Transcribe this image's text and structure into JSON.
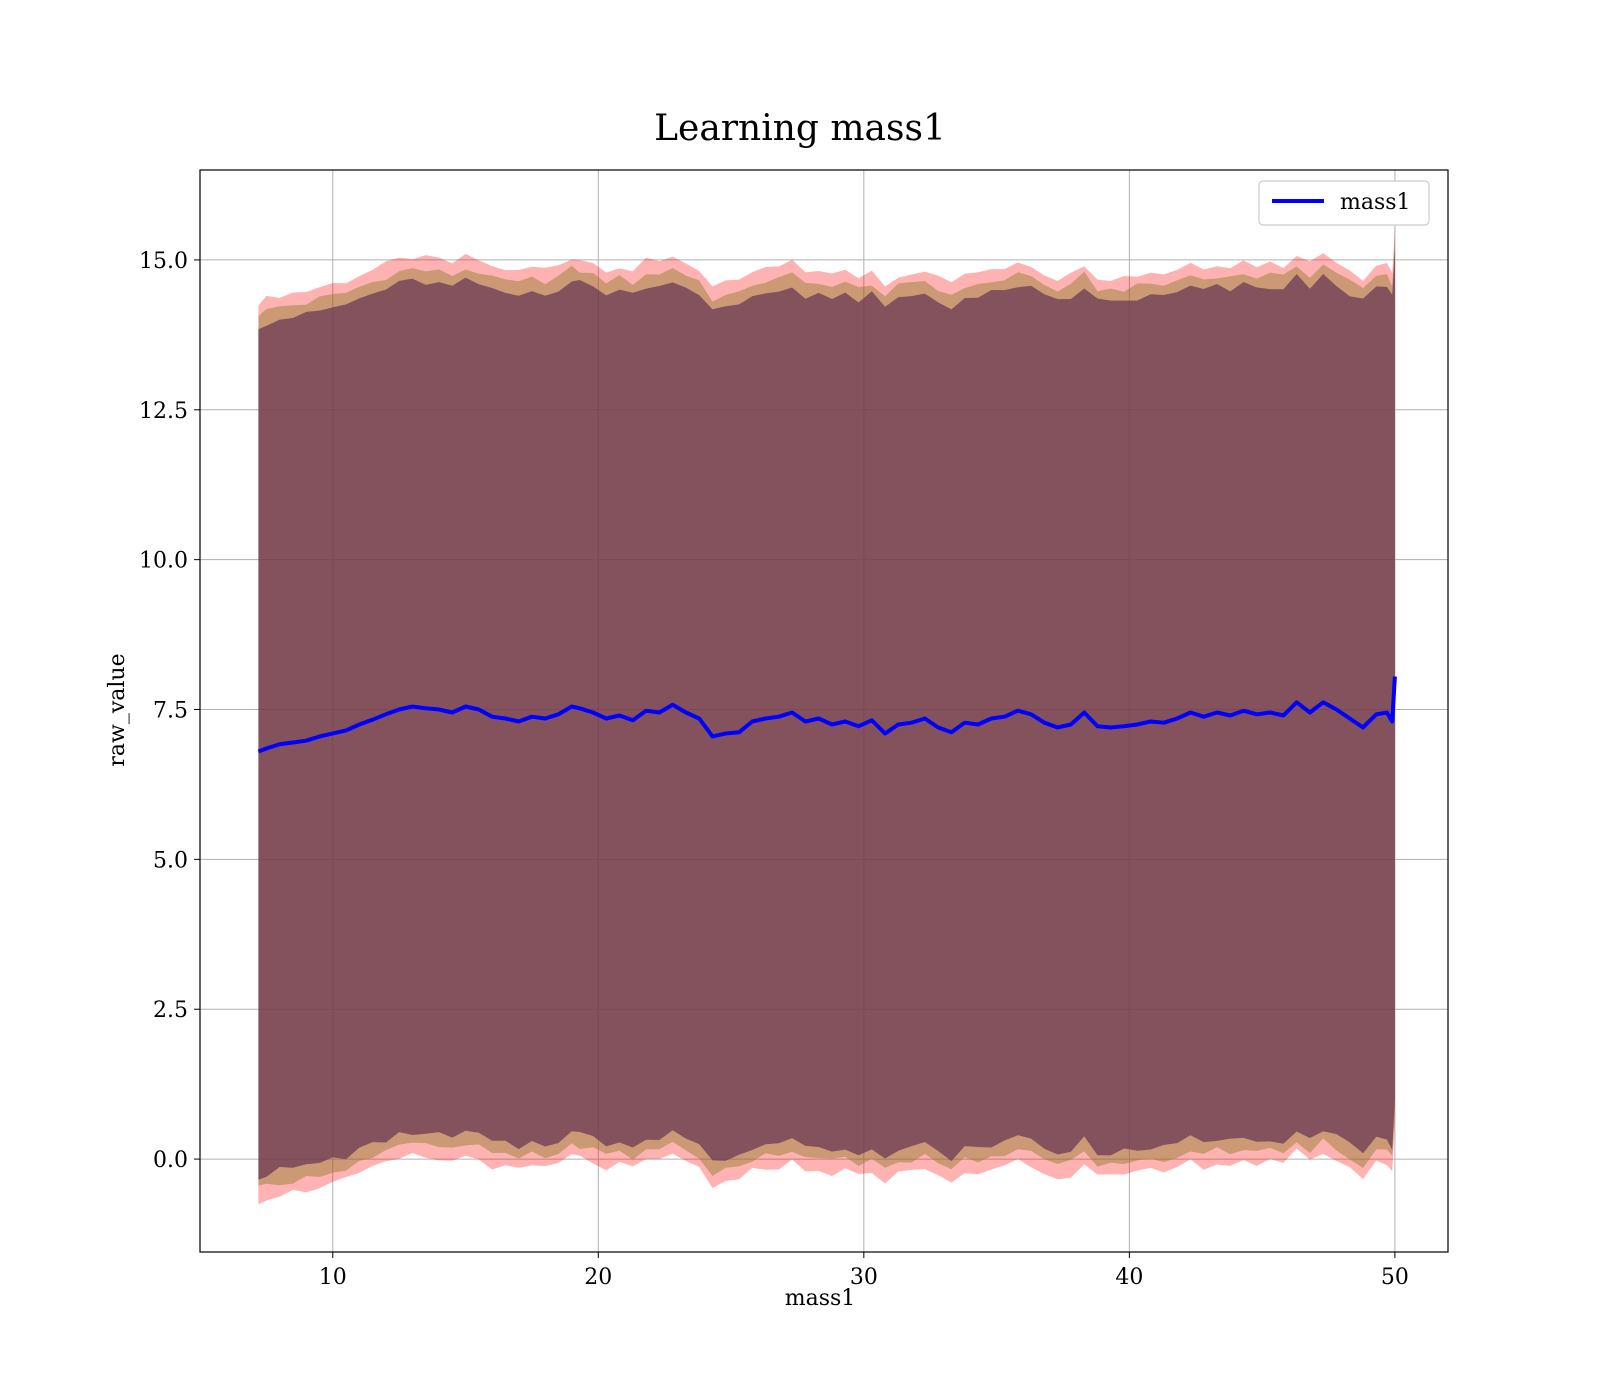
{
  "chart_data": {
    "type": "line",
    "title": "Learning mass1",
    "xlabel": "mass1",
    "ylabel": "raw_value",
    "xlim": [
      5.0,
      52.0
    ],
    "ylim": [
      -1.55,
      16.5
    ],
    "xticks": [
      10,
      20,
      30,
      40,
      50
    ],
    "xtick_labels": [
      "10",
      "20",
      "30",
      "40",
      "50"
    ],
    "yticks": [
      0.0,
      2.5,
      5.0,
      7.5,
      10.0,
      12.5,
      15.0
    ],
    "ytick_labels": [
      "0.0",
      "2.5",
      "5.0",
      "7.5",
      "10.0",
      "12.5",
      "15.0"
    ],
    "grid": true,
    "legend": {
      "location": "upper right",
      "entries": [
        "mass1"
      ]
    },
    "colors": {
      "line": "#0000ff",
      "outer_band": "#ff0000",
      "middle_band": "#8b7d2a",
      "inner_band": "#6b3a55"
    },
    "band_half_widths": {
      "outer": 7.5,
      "middle": 7.3,
      "inner": 7.1
    },
    "series": [
      {
        "name": "mass1",
        "x": [
          7.2,
          7.5,
          8.0,
          8.5,
          9.0,
          9.5,
          10.0,
          10.5,
          11.0,
          11.5,
          12.0,
          12.5,
          13.0,
          13.5,
          14.0,
          14.5,
          15.0,
          15.5,
          16.0,
          16.5,
          17.0,
          17.5,
          18.0,
          18.5,
          19.0,
          19.3,
          19.8,
          20.3,
          20.8,
          21.3,
          21.8,
          22.3,
          22.8,
          23.3,
          23.8,
          24.3,
          24.8,
          25.3,
          25.8,
          26.3,
          26.8,
          27.3,
          27.8,
          28.3,
          28.8,
          29.3,
          29.8,
          30.3,
          30.8,
          31.3,
          31.8,
          32.3,
          32.8,
          33.3,
          33.8,
          34.3,
          34.8,
          35.3,
          35.8,
          36.3,
          36.8,
          37.3,
          37.8,
          38.3,
          38.8,
          39.3,
          39.8,
          40.3,
          40.8,
          41.3,
          41.8,
          42.3,
          42.8,
          43.3,
          43.8,
          44.3,
          44.8,
          45.3,
          45.8,
          46.3,
          46.8,
          47.3,
          47.8,
          48.3,
          48.8,
          49.3,
          49.7,
          49.9,
          50.0
        ],
        "values": [
          6.8,
          6.85,
          6.92,
          6.95,
          6.98,
          7.05,
          7.1,
          7.15,
          7.25,
          7.33,
          7.42,
          7.5,
          7.55,
          7.52,
          7.5,
          7.45,
          7.55,
          7.5,
          7.38,
          7.35,
          7.3,
          7.38,
          7.35,
          7.42,
          7.55,
          7.52,
          7.45,
          7.35,
          7.4,
          7.32,
          7.48,
          7.45,
          7.58,
          7.45,
          7.35,
          7.05,
          7.1,
          7.12,
          7.3,
          7.35,
          7.38,
          7.45,
          7.3,
          7.35,
          7.25,
          7.3,
          7.22,
          7.32,
          7.1,
          7.25,
          7.28,
          7.35,
          7.2,
          7.12,
          7.28,
          7.25,
          7.35,
          7.38,
          7.48,
          7.42,
          7.28,
          7.2,
          7.25,
          7.45,
          7.22,
          7.2,
          7.22,
          7.25,
          7.3,
          7.28,
          7.35,
          7.45,
          7.38,
          7.45,
          7.4,
          7.48,
          7.42,
          7.45,
          7.4,
          7.62,
          7.45,
          7.62,
          7.5,
          7.35,
          7.2,
          7.42,
          7.45,
          7.3,
          8.05
        ]
      }
    ]
  }
}
